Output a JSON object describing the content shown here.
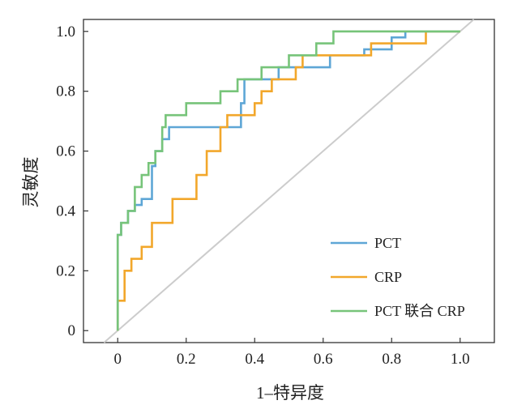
{
  "chart_data": {
    "type": "line",
    "title": "",
    "xlabel": "1–特异度",
    "ylabel": "灵敏度",
    "xlim": [
      -0.1,
      1.1
    ],
    "ylim": [
      -0.04,
      1.04
    ],
    "x_ticks": [
      "0",
      "0.2",
      "0.4",
      "0.6",
      "0.8",
      "1.0"
    ],
    "y_ticks": [
      "0",
      "0.2",
      "0.4",
      "0.6",
      "0.8",
      "1.0"
    ],
    "grid": false,
    "legend_position": "bottom-right",
    "reference_line": {
      "x": [
        -0.04,
        1.04
      ],
      "y": [
        -0.04,
        1.04
      ],
      "color": "#cccccc"
    },
    "series": [
      {
        "name": "PCT",
        "color": "#5ea6d6",
        "x": [
          0,
          0,
          0.01,
          0.01,
          0.03,
          0.03,
          0.05,
          0.05,
          0.07,
          0.07,
          0.1,
          0.1,
          0.11,
          0.11,
          0.13,
          0.13,
          0.15,
          0.15,
          0.36,
          0.36,
          0.37,
          0.37,
          0.47,
          0.47,
          0.62,
          0.62,
          0.72,
          0.72,
          0.8,
          0.8,
          0.84,
          0.84,
          1.0
        ],
        "y": [
          0,
          0.32,
          0.32,
          0.36,
          0.36,
          0.4,
          0.4,
          0.42,
          0.42,
          0.44,
          0.44,
          0.55,
          0.55,
          0.6,
          0.6,
          0.64,
          0.64,
          0.68,
          0.68,
          0.76,
          0.76,
          0.84,
          0.84,
          0.88,
          0.88,
          0.92,
          0.92,
          0.94,
          0.94,
          0.98,
          0.98,
          1.0,
          1.0
        ]
      },
      {
        "name": "CRP",
        "color": "#f2a72b",
        "x": [
          0,
          0,
          0.02,
          0.02,
          0.04,
          0.04,
          0.07,
          0.07,
          0.1,
          0.1,
          0.16,
          0.16,
          0.23,
          0.23,
          0.26,
          0.26,
          0.3,
          0.3,
          0.32,
          0.32,
          0.4,
          0.4,
          0.42,
          0.42,
          0.45,
          0.45,
          0.52,
          0.52,
          0.54,
          0.54,
          0.65,
          0.65,
          0.74,
          0.74,
          0.9,
          0.9,
          1.0
        ],
        "y": [
          0,
          0.1,
          0.1,
          0.2,
          0.2,
          0.24,
          0.24,
          0.28,
          0.28,
          0.36,
          0.36,
          0.44,
          0.44,
          0.52,
          0.52,
          0.6,
          0.6,
          0.68,
          0.68,
          0.72,
          0.72,
          0.76,
          0.76,
          0.8,
          0.8,
          0.84,
          0.84,
          0.88,
          0.88,
          0.92,
          0.92,
          0.92,
          0.92,
          0.96,
          0.96,
          1.0,
          1.0
        ]
      },
      {
        "name": "PCT 联合 CRP",
        "color": "#77c47a",
        "x": [
          0,
          0,
          0.01,
          0.01,
          0.03,
          0.03,
          0.05,
          0.05,
          0.07,
          0.07,
          0.09,
          0.09,
          0.11,
          0.11,
          0.13,
          0.13,
          0.14,
          0.14,
          0.2,
          0.2,
          0.3,
          0.3,
          0.35,
          0.35,
          0.42,
          0.42,
          0.5,
          0.5,
          0.58,
          0.58,
          0.63,
          0.63,
          1.0
        ],
        "y": [
          0,
          0.32,
          0.32,
          0.36,
          0.36,
          0.4,
          0.4,
          0.48,
          0.48,
          0.52,
          0.52,
          0.56,
          0.56,
          0.6,
          0.6,
          0.68,
          0.68,
          0.72,
          0.72,
          0.76,
          0.76,
          0.8,
          0.8,
          0.84,
          0.84,
          0.88,
          0.88,
          0.92,
          0.92,
          0.96,
          0.96,
          1.0,
          1.0
        ]
      }
    ]
  }
}
